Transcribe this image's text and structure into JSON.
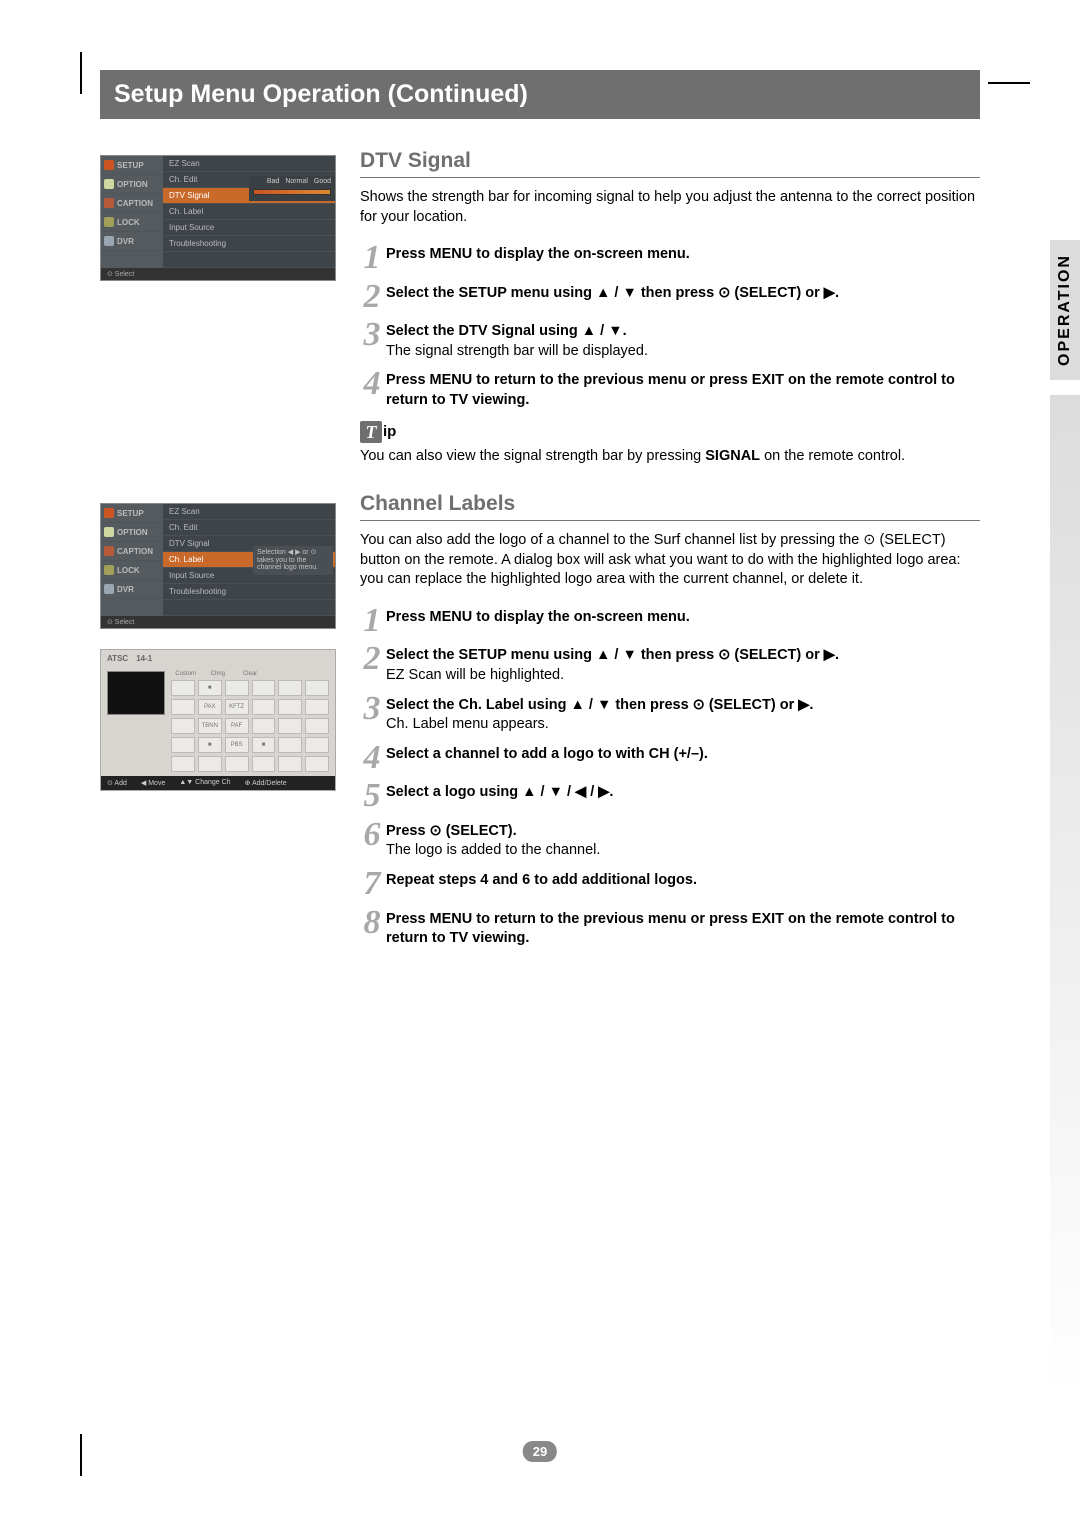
{
  "title": "Setup Menu Operation (Continued)",
  "side_tab": "OPERATION",
  "page_number": "29",
  "dtv": {
    "heading": "DTV Signal",
    "intro": "Shows the strength bar for incoming signal to help you adjust the antenna to the correct position for your location.",
    "steps": [
      {
        "n": "1",
        "bold": "Press MENU to display the on-screen menu.",
        "plain": ""
      },
      {
        "n": "2",
        "bold": "Select the SETUP menu using ▲ / ▼ then press ⊙ (SELECT) or ▶.",
        "plain": ""
      },
      {
        "n": "3",
        "bold": "Select the DTV Signal using ▲ / ▼.",
        "plain": "The signal strength bar will be displayed."
      },
      {
        "n": "4",
        "bold": "Press MENU to return to the previous menu or press EXIT on the remote control to return to TV viewing.",
        "plain": ""
      }
    ],
    "tip_label": "ip",
    "tip_text_pre": "You can also view the signal strength bar by pressing ",
    "tip_bold": "SIGNAL",
    "tip_text_post": " on the remote control."
  },
  "ch": {
    "heading": "Channel Labels",
    "intro": "You can also add the logo of a channel to the Surf channel list by pressing the ⊙ (SELECT) button on the remote. A dialog box will ask what you want to do with the highlighted logo area: you can replace the highlighted logo area with the current channel, or delete it.",
    "steps": [
      {
        "n": "1",
        "bold": "Press MENU to display the on-screen menu.",
        "plain": ""
      },
      {
        "n": "2",
        "bold": "Select the SETUP menu using ▲ / ▼ then press ⊙ (SELECT) or ▶.",
        "plain": "EZ Scan will be highlighted."
      },
      {
        "n": "3",
        "bold": "Select the Ch. Label using ▲ / ▼ then press ⊙ (SELECT) or ▶.",
        "plain": "Ch. Label menu appears."
      },
      {
        "n": "4",
        "bold": "Select a channel to add a logo to with CH (+/–).",
        "plain": ""
      },
      {
        "n": "5",
        "bold": "Select a logo using ▲ / ▼ / ◀ / ▶.",
        "plain": ""
      },
      {
        "n": "6",
        "bold": "Press ⊙ (SELECT).",
        "plain": "The logo is added to the channel."
      },
      {
        "n": "7",
        "bold": "Repeat steps 4 and 6 to add additional logos.",
        "plain": ""
      },
      {
        "n": "8",
        "bold": "Press MENU to return to the previous menu or press EXIT on the remote control to return to TV viewing.",
        "plain": ""
      }
    ]
  },
  "tv_sidebar": [
    "SETUP",
    "OPTION",
    "CAPTION",
    "LOCK",
    "DVR"
  ],
  "tv_icon_colors": [
    "#cc5522",
    "#cfd8a0",
    "#b65a3a",
    "#a0a05a",
    "#9aa7b3"
  ],
  "tv_menu_dtv": [
    {
      "t": "EZ Scan",
      "hl": false
    },
    {
      "t": "Ch. Edit",
      "hl": false
    },
    {
      "t": "DTV Signal",
      "hl": true
    },
    {
      "t": "Ch. Label",
      "hl": false
    },
    {
      "t": "Input Source",
      "hl": false
    },
    {
      "t": "Troubleshooting",
      "hl": false
    },
    {
      "t": "",
      "hl": false
    }
  ],
  "tv_menu_ch": [
    {
      "t": "EZ Scan",
      "hl": false
    },
    {
      "t": "Ch. Edit",
      "hl": false
    },
    {
      "t": "DTV Signal",
      "hl": false
    },
    {
      "t": "Ch. Label",
      "hl": true
    },
    {
      "t": "Input Source",
      "hl": false
    },
    {
      "t": "Troubleshooting",
      "hl": false
    },
    {
      "t": "",
      "hl": false
    }
  ],
  "sig_labels": [
    "Bad",
    "Normal",
    "Good"
  ],
  "balloon_text": "Selection ◀ ▶ or ⊙ takes you to the channel logo menu.",
  "tv_footer": "⊙ Select",
  "logo_hdr": [
    "ATSC",
    "14-1"
  ],
  "logo_grid_headers": [
    "Custom",
    "Chng",
    "Clear",
    "",
    ""
  ],
  "logo_cells": [
    "",
    "■",
    "",
    "",
    "",
    "",
    "",
    "PAX",
    "KFTZ",
    "",
    "",
    "",
    "",
    "TBNN",
    "PAF",
    "",
    "",
    "",
    "",
    "■",
    "PBS",
    "■",
    "",
    "",
    "",
    "",
    "",
    "",
    "",
    ""
  ],
  "logo_footer": [
    "⊙ Add",
    "◀ Move",
    "▲▼ Change Ch",
    "⊕ Add/Delete"
  ],
  "colors": {
    "title_bg": "#6f6f6f",
    "step_num": "#a8a8a8",
    "section_title": "#6f6f6f",
    "side_tab_bg": "#dcdcdc"
  }
}
